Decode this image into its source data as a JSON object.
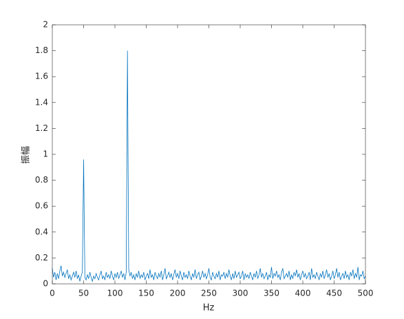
{
  "chart_data": {
    "type": "line",
    "x_label": "Hz",
    "y_label": "振幅",
    "color": "#0072BD",
    "xlim": [
      0,
      500
    ],
    "ylim": [
      0,
      2
    ],
    "xticks": [
      0,
      50,
      100,
      150,
      200,
      250,
      300,
      350,
      400,
      450,
      500
    ],
    "yticks": [
      0,
      0.2,
      0.4,
      0.6,
      0.8,
      1,
      1.2,
      1.4,
      1.6,
      1.8,
      2
    ],
    "grid": false,
    "x": [
      0,
      2,
      4,
      6,
      8,
      10,
      12,
      14,
      16,
      18,
      20,
      22,
      24,
      26,
      28,
      30,
      32,
      34,
      36,
      38,
      40,
      42,
      44,
      46,
      48,
      50,
      52,
      54,
      56,
      58,
      60,
      62,
      64,
      66,
      68,
      70,
      72,
      74,
      76,
      78,
      80,
      82,
      84,
      86,
      88,
      90,
      92,
      94,
      96,
      98,
      100,
      102,
      104,
      106,
      108,
      110,
      112,
      114,
      116,
      118,
      120,
      122,
      124,
      126,
      128,
      130,
      132,
      134,
      136,
      138,
      140,
      142,
      144,
      146,
      148,
      150,
      152,
      154,
      156,
      158,
      160,
      162,
      164,
      166,
      168,
      170,
      172,
      174,
      176,
      178,
      180,
      182,
      184,
      186,
      188,
      190,
      192,
      194,
      196,
      198,
      200,
      202,
      204,
      206,
      208,
      210,
      212,
      214,
      216,
      218,
      220,
      222,
      224,
      226,
      228,
      230,
      232,
      234,
      236,
      238,
      240,
      242,
      244,
      246,
      248,
      250,
      252,
      254,
      256,
      258,
      260,
      262,
      264,
      266,
      268,
      270,
      272,
      274,
      276,
      278,
      280,
      282,
      284,
      286,
      288,
      290,
      292,
      294,
      296,
      298,
      300,
      302,
      304,
      306,
      308,
      310,
      312,
      314,
      316,
      318,
      320,
      322,
      324,
      326,
      328,
      330,
      332,
      334,
      336,
      338,
      340,
      342,
      344,
      346,
      348,
      350,
      352,
      354,
      356,
      358,
      360,
      362,
      364,
      366,
      368,
      370,
      372,
      374,
      376,
      378,
      380,
      382,
      384,
      386,
      388,
      390,
      392,
      394,
      396,
      398,
      400,
      402,
      404,
      406,
      408,
      410,
      412,
      414,
      416,
      418,
      420,
      422,
      424,
      426,
      428,
      430,
      432,
      434,
      436,
      438,
      440,
      442,
      444,
      446,
      448,
      450,
      452,
      454,
      456,
      458,
      460,
      462,
      464,
      466,
      468,
      470,
      472,
      474,
      476,
      478,
      480,
      482,
      484,
      486,
      488,
      490,
      492,
      494,
      496,
      498,
      500
    ],
    "values": [
      0.12,
      0.05,
      0.09,
      0.03,
      0.08,
      0.04,
      0.1,
      0.14,
      0.06,
      0.09,
      0.05,
      0.08,
      0.11,
      0.04,
      0.07,
      0.03,
      0.06,
      0.09,
      0.05,
      0.1,
      0.04,
      0.07,
      0.02,
      0.06,
      0.09,
      0.96,
      0.05,
      0.03,
      0.07,
      0.04,
      0.09,
      0.05,
      0.02,
      0.06,
      0.04,
      0.08,
      0.05,
      0.03,
      0.07,
      0.1,
      0.04,
      0.06,
      0.03,
      0.09,
      0.05,
      0.07,
      0.04,
      0.1,
      0.06,
      0.03,
      0.08,
      0.05,
      0.09,
      0.04,
      0.07,
      0.1,
      0.05,
      0.08,
      0.03,
      0.09,
      1.8,
      0.11,
      0.06,
      0.09,
      0.04,
      0.07,
      0.03,
      0.08,
      0.05,
      0.1,
      0.04,
      0.07,
      0.05,
      0.09,
      0.03,
      0.06,
      0.08,
      0.04,
      0.11,
      0.05,
      0.07,
      0.03,
      0.09,
      0.06,
      0.04,
      0.08,
      0.05,
      0.1,
      0.03,
      0.07,
      0.12,
      0.04,
      0.06,
      0.09,
      0.05,
      0.08,
      0.03,
      0.07,
      0.11,
      0.05,
      0.08,
      0.04,
      0.1,
      0.06,
      0.03,
      0.09,
      0.05,
      0.07,
      0.04,
      0.1,
      0.06,
      0.03,
      0.08,
      0.05,
      0.11,
      0.04,
      0.07,
      0.09,
      0.03,
      0.06,
      0.1,
      0.05,
      0.08,
      0.04,
      0.07,
      0.12,
      0.05,
      0.03,
      0.09,
      0.06,
      0.04,
      0.08,
      0.05,
      0.1,
      0.03,
      0.07,
      0.06,
      0.09,
      0.04,
      0.08,
      0.05,
      0.11,
      0.06,
      0.03,
      0.08,
      0.04,
      0.1,
      0.05,
      0.07,
      0.09,
      0.04,
      0.06,
      0.1,
      0.03,
      0.08,
      0.05,
      0.07,
      0.04,
      0.09,
      0.06,
      0.03,
      0.08,
      0.05,
      0.1,
      0.04,
      0.07,
      0.12,
      0.05,
      0.08,
      0.04,
      0.06,
      0.09,
      0.03,
      0.07,
      0.05,
      0.13,
      0.04,
      0.08,
      0.06,
      0.1,
      0.05,
      0.07,
      0.03,
      0.09,
      0.12,
      0.04,
      0.06,
      0.08,
      0.05,
      0.1,
      0.03,
      0.07,
      0.04,
      0.09,
      0.06,
      0.11,
      0.05,
      0.08,
      0.03,
      0.07,
      0.1,
      0.05,
      0.08,
      0.04,
      0.06,
      0.09,
      0.03,
      0.12,
      0.05,
      0.07,
      0.04,
      0.09,
      0.06,
      0.03,
      0.08,
      0.05,
      0.1,
      0.04,
      0.07,
      0.11,
      0.05,
      0.08,
      0.03,
      0.06,
      0.1,
      0.04,
      0.07,
      0.12,
      0.05,
      0.09,
      0.03,
      0.06,
      0.08,
      0.04,
      0.1,
      0.05,
      0.07,
      0.03,
      0.09,
      0.06,
      0.11,
      0.04,
      0.08,
      0.05,
      0.13,
      0.03,
      0.07,
      0.06,
      0.1,
      0.04,
      0.06
    ]
  }
}
